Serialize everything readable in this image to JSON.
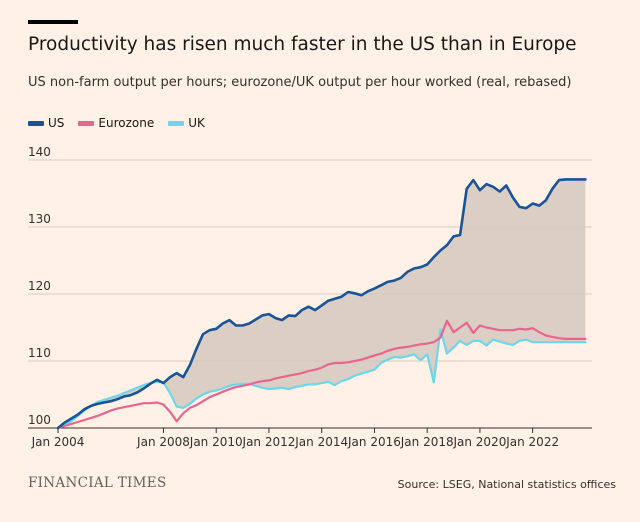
{
  "header": {
    "title": "Productivity has risen much faster in the US than in Europe",
    "subtitle": "US non-farm output per hours; eurozone/UK output per hour worked (real, rebased)"
  },
  "footer": {
    "brand": "FINANCIAL TIMES",
    "source": "Source: LSEG, National statistics offices"
  },
  "colors": {
    "US": "#1a5396",
    "Eurozone": "#e8658e",
    "UK": "#6dd6e8",
    "fill": "#d5c8c0",
    "grid": "#d9cbbf"
  },
  "chart_data": {
    "type": "line",
    "title": "Productivity has risen much faster in the US than in Europe",
    "subtitle": "US non-farm output per hours; eurozone/UK output per hour worked (real, rebased)",
    "xlim": [
      2004.0,
      2024.25
    ],
    "ylim": [
      100,
      140
    ],
    "yticks": [
      100,
      110,
      120,
      130,
      140
    ],
    "xticks": [
      {
        "value": 2004,
        "label": "Jan 2004"
      },
      {
        "value": 2008,
        "label": "Jan 2008"
      },
      {
        "value": 2010,
        "label": "Jan 2010"
      },
      {
        "value": 2012,
        "label": "Jan 2012"
      },
      {
        "value": 2014,
        "label": "Jan 2014"
      },
      {
        "value": 2016,
        "label": "Jan 2016"
      },
      {
        "value": 2018,
        "label": "Jan 2018"
      },
      {
        "value": 2020,
        "label": "Jan 2020"
      },
      {
        "value": 2022,
        "label": "Jan 2022"
      }
    ],
    "grid": true,
    "legend_position": "top-left",
    "shaded_between": [
      "US",
      "UK"
    ],
    "series": [
      {
        "name": "US",
        "x": [
          2004.0,
          2004.25,
          2004.5,
          2004.75,
          2005.0,
          2005.25,
          2005.5,
          2005.75,
          2006.0,
          2006.25,
          2006.5,
          2006.75,
          2007.0,
          2007.25,
          2007.5,
          2007.75,
          2008.0,
          2008.25,
          2008.5,
          2008.75,
          2009.0,
          2009.25,
          2009.5,
          2009.75,
          2010.0,
          2010.25,
          2010.5,
          2010.75,
          2011.0,
          2011.25,
          2011.5,
          2011.75,
          2012.0,
          2012.25,
          2012.5,
          2012.75,
          2013.0,
          2013.25,
          2013.5,
          2013.75,
          2014.0,
          2014.25,
          2014.5,
          2014.75,
          2015.0,
          2015.25,
          2015.5,
          2015.75,
          2016.0,
          2016.25,
          2016.5,
          2016.75,
          2017.0,
          2017.25,
          2017.5,
          2017.75,
          2018.0,
          2018.25,
          2018.5,
          2018.75,
          2019.0,
          2019.25,
          2019.5,
          2019.75,
          2020.0,
          2020.25,
          2020.5,
          2020.75,
          2021.0,
          2021.25,
          2021.5,
          2021.75,
          2022.0,
          2022.25,
          2022.5,
          2022.75,
          2023.0,
          2023.25,
          2023.5,
          2023.75,
          2024.0
        ],
        "values": [
          100.0,
          100.8,
          101.4,
          102.0,
          102.8,
          103.3,
          103.6,
          103.8,
          104.0,
          104.3,
          104.7,
          104.9,
          105.3,
          105.9,
          106.6,
          107.2,
          106.7,
          107.6,
          108.2,
          107.6,
          109.4,
          111.8,
          114.0,
          114.6,
          114.8,
          115.6,
          116.1,
          115.3,
          115.3,
          115.6,
          116.2,
          116.8,
          117.0,
          116.4,
          116.1,
          116.8,
          116.7,
          117.6,
          118.1,
          117.6,
          118.3,
          119.0,
          119.3,
          119.6,
          120.3,
          120.1,
          119.8,
          120.4,
          120.8,
          121.3,
          121.8,
          122.0,
          122.4,
          123.3,
          123.8,
          124.0,
          124.4,
          125.5,
          126.5,
          127.3,
          128.6,
          128.8,
          135.7,
          137.0,
          135.5,
          136.4,
          136.0,
          135.3,
          136.2,
          134.4,
          133.0,
          132.8,
          133.5,
          133.2,
          134.0,
          135.7,
          137.0,
          137.1,
          137.1,
          137.1,
          137.1
        ]
      },
      {
        "name": "Eurozone",
        "x": [
          2004.0,
          2004.25,
          2004.5,
          2004.75,
          2005.0,
          2005.25,
          2005.5,
          2005.75,
          2006.0,
          2006.25,
          2006.5,
          2006.75,
          2007.0,
          2007.25,
          2007.5,
          2007.75,
          2008.0,
          2008.25,
          2008.5,
          2008.75,
          2009.0,
          2009.25,
          2009.5,
          2009.75,
          2010.0,
          2010.25,
          2010.5,
          2010.75,
          2011.0,
          2011.25,
          2011.5,
          2011.75,
          2012.0,
          2012.25,
          2012.5,
          2012.75,
          2013.0,
          2013.25,
          2013.5,
          2013.75,
          2014.0,
          2014.25,
          2014.5,
          2014.75,
          2015.0,
          2015.25,
          2015.5,
          2015.75,
          2016.0,
          2016.25,
          2016.5,
          2016.75,
          2017.0,
          2017.25,
          2017.5,
          2017.75,
          2018.0,
          2018.25,
          2018.5,
          2018.75,
          2019.0,
          2019.25,
          2019.5,
          2019.75,
          2020.0,
          2020.25,
          2020.5,
          2020.75,
          2021.0,
          2021.25,
          2021.5,
          2021.75,
          2022.0,
          2022.25,
          2022.5,
          2022.75,
          2023.0,
          2023.25,
          2023.5,
          2023.75,
          2024.0
        ],
        "values": [
          100.0,
          100.3,
          100.6,
          100.9,
          101.2,
          101.5,
          101.8,
          102.2,
          102.6,
          102.9,
          103.1,
          103.3,
          103.5,
          103.7,
          103.7,
          103.8,
          103.5,
          102.4,
          101.0,
          102.2,
          103.0,
          103.4,
          104.0,
          104.6,
          105.0,
          105.4,
          105.8,
          106.1,
          106.3,
          106.5,
          106.8,
          107.0,
          107.1,
          107.4,
          107.6,
          107.8,
          108.0,
          108.2,
          108.5,
          108.7,
          109.0,
          109.5,
          109.7,
          109.7,
          109.8,
          110.0,
          110.2,
          110.5,
          110.8,
          111.1,
          111.5,
          111.8,
          112.0,
          112.1,
          112.3,
          112.5,
          112.6,
          112.8,
          113.5,
          116.0,
          114.3,
          115.0,
          115.7,
          114.2,
          115.3,
          115.0,
          114.8,
          114.6,
          114.6,
          114.6,
          114.8,
          114.7,
          114.9,
          114.3,
          113.8,
          113.6,
          113.4,
          113.3,
          113.3,
          113.3,
          113.3
        ]
      },
      {
        "name": "UK",
        "x": [
          2004.0,
          2004.25,
          2004.5,
          2004.75,
          2005.0,
          2005.25,
          2005.5,
          2005.75,
          2006.0,
          2006.25,
          2006.5,
          2006.75,
          2007.0,
          2007.25,
          2007.5,
          2007.75,
          2008.0,
          2008.25,
          2008.5,
          2008.75,
          2009.0,
          2009.25,
          2009.5,
          2009.75,
          2010.0,
          2010.25,
          2010.5,
          2010.75,
          2011.0,
          2011.25,
          2011.5,
          2011.75,
          2012.0,
          2012.25,
          2012.5,
          2012.75,
          2013.0,
          2013.25,
          2013.5,
          2013.75,
          2014.0,
          2014.25,
          2014.5,
          2014.75,
          2015.0,
          2015.25,
          2015.5,
          2015.75,
          2016.0,
          2016.25,
          2016.5,
          2016.75,
          2017.0,
          2017.25,
          2017.5,
          2017.75,
          2018.0,
          2018.25,
          2018.5,
          2018.75,
          2019.0,
          2019.25,
          2019.5,
          2019.75,
          2020.0,
          2020.25,
          2020.5,
          2020.75,
          2021.0,
          2021.25,
          2021.5,
          2021.75,
          2022.0,
          2022.25,
          2022.5,
          2022.75,
          2023.0,
          2023.25,
          2023.5,
          2023.75,
          2024.0
        ],
        "values": [
          100.0,
          100.4,
          101.0,
          101.8,
          102.6,
          103.3,
          103.9,
          104.2,
          104.5,
          104.8,
          105.2,
          105.6,
          106.0,
          106.4,
          106.7,
          106.9,
          106.8,
          105.2,
          103.2,
          103.0,
          103.6,
          104.4,
          105.0,
          105.4,
          105.6,
          105.9,
          106.3,
          106.5,
          106.6,
          106.6,
          106.3,
          106.0,
          105.8,
          105.9,
          106.0,
          105.8,
          106.1,
          106.3,
          106.5,
          106.5,
          106.7,
          106.9,
          106.4,
          107.0,
          107.3,
          107.8,
          108.1,
          108.4,
          108.7,
          109.7,
          110.2,
          110.6,
          110.5,
          110.7,
          111.0,
          110.1,
          111.0,
          106.8,
          114.7,
          111.1,
          112.0,
          113.0,
          112.4,
          113.0,
          113.0,
          112.3,
          113.2,
          112.9,
          112.6,
          112.4,
          113.0,
          113.2,
          112.8,
          112.8,
          112.8,
          112.8,
          112.8,
          112.8,
          112.8,
          112.8,
          112.8
        ]
      }
    ]
  }
}
